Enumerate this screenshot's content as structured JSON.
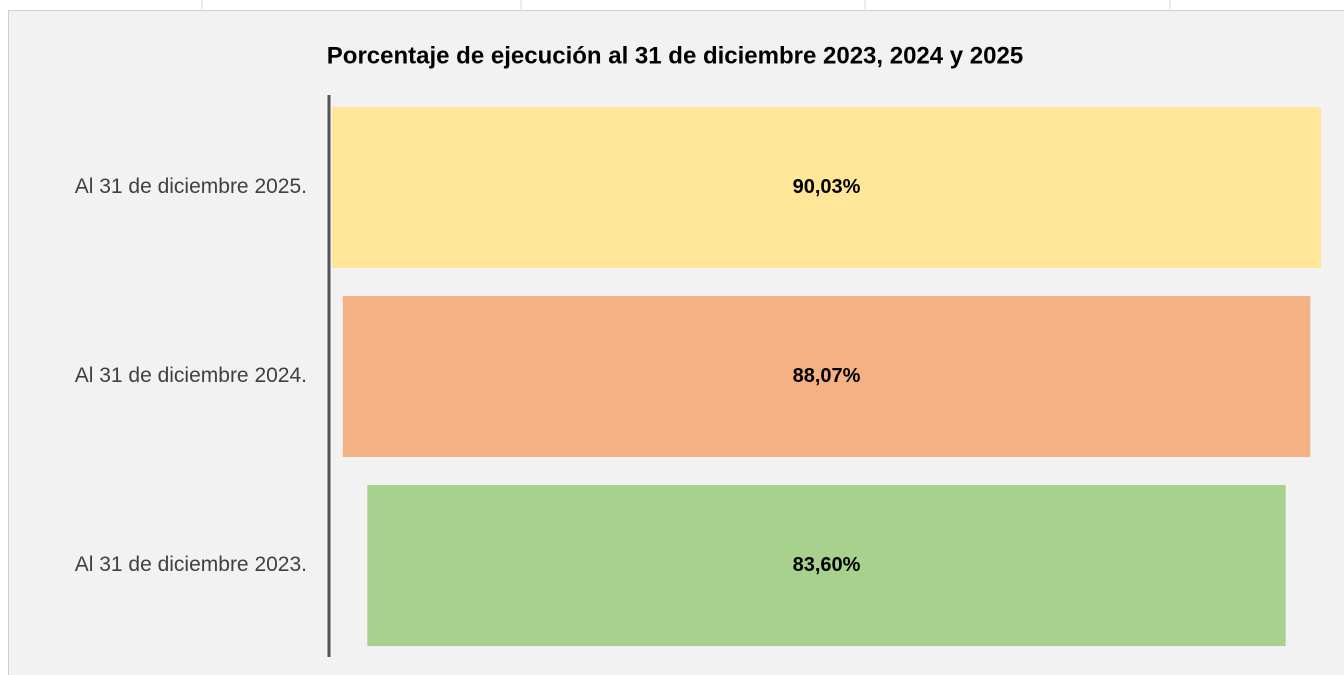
{
  "chart_data": {
    "type": "funnel",
    "title": "Porcentaje de ejecución al 31 de diciembre 2023, 2024 y 2025",
    "categories": [
      "Al 31 de diciembre 2025.",
      "Al 31 de diciembre 2024.",
      "Al 31 de diciembre 2023."
    ],
    "values": [
      90.03,
      88.07,
      83.6
    ],
    "value_labels": [
      "90,03%",
      "88,07%",
      "83,60%"
    ],
    "colors": [
      "#ffe699",
      "#f4b183",
      "#a9d18e"
    ]
  }
}
